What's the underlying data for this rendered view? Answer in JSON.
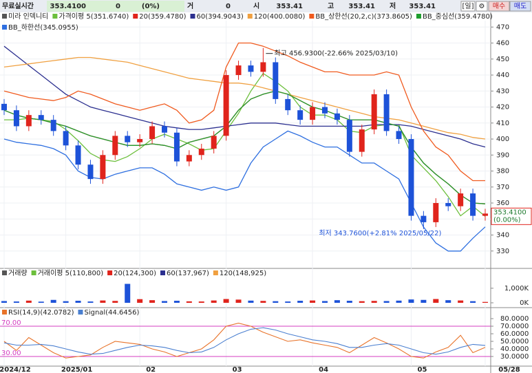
{
  "header": {
    "label": "무료실시간",
    "price": "353.4100",
    "change": "0",
    "change_pct": "(0%)",
    "vol_label": "거",
    "vol": "0",
    "open_label": "시",
    "open": "353.41",
    "high_label": "고",
    "high": "353.41",
    "low_label": "저",
    "low": "353.41",
    "period": "[일]",
    "settings": "⚙",
    "buy": "매수",
    "sell": "매도"
  },
  "chart_data": [
    {
      "type": "candlestick",
      "title": "미라 인덱니티",
      "categories": [
        "2024/12",
        null,
        null,
        null,
        null,
        "2025/01",
        null,
        null,
        null,
        null,
        null,
        "02",
        null,
        null,
        null,
        null,
        null,
        null,
        "03",
        null,
        null,
        null,
        null,
        null,
        null,
        "04",
        null,
        null,
        null,
        null,
        null,
        null,
        null,
        "05",
        null,
        null,
        null,
        null,
        null,
        "05/28"
      ],
      "open": [
        422,
        418,
        408,
        415,
        412,
        405,
        396,
        384,
        375,
        390,
        402,
        398,
        400,
        408,
        404,
        386,
        390,
        394,
        402,
        440,
        446,
        442,
        448,
        425,
        418,
        412,
        420,
        416,
        412,
        392,
        406,
        428,
        405,
        400,
        352,
        348,
        360,
        358,
        366,
        352
      ],
      "high": [
        425,
        421,
        418,
        418,
        415,
        408,
        399,
        387,
        393,
        405,
        405,
        403,
        411,
        411,
        407,
        393,
        397,
        405,
        443,
        449,
        449,
        456.93,
        451,
        428,
        421,
        423,
        423,
        419,
        415,
        409,
        431,
        431,
        408,
        403,
        355,
        363,
        363,
        369,
        369,
        356.41
      ],
      "low": [
        415,
        405,
        405,
        409,
        402,
        393,
        381,
        372,
        372,
        387,
        395,
        395,
        397,
        401,
        383,
        383,
        387,
        391,
        399,
        437,
        439,
        439,
        422,
        415,
        409,
        409,
        413,
        409,
        389,
        389,
        403,
        402,
        397,
        349,
        343.76,
        345,
        355,
        355,
        349,
        349
      ],
      "close": [
        418,
        408,
        415,
        412,
        405,
        396,
        384,
        375,
        390,
        402,
        398,
        400,
        408,
        404,
        386,
        390,
        394,
        402,
        440,
        446,
        442,
        448,
        425,
        418,
        412,
        420,
        416,
        412,
        392,
        406,
        428,
        405,
        400,
        352,
        348,
        360,
        358,
        366,
        352,
        353.41
      ],
      "up_color": "#e0241c",
      "down_color": "#1d52d8",
      "series": [
        {
          "name": "가격이평 5(351.6740)",
          "color": "#6cbf3c",
          "values": [
            412,
            412,
            413,
            412,
            411,
            406,
            399,
            391,
            387,
            386,
            389,
            394,
            400,
            403,
            400,
            397,
            393,
            394,
            405,
            416,
            430,
            441,
            436,
            430,
            420,
            415,
            415,
            412,
            405,
            404,
            408,
            409,
            409,
            390,
            382,
            374,
            364,
            352,
            358,
            351.67
          ]
        },
        {
          "name": "20(359.4780)",
          "color": "#e0241c",
          "values": [
            418,
            415,
            413,
            412,
            410,
            408,
            405,
            402,
            400,
            398,
            396,
            396,
            397,
            396,
            394,
            398,
            400,
            402,
            408,
            418,
            425,
            428,
            430,
            428,
            424,
            420,
            418,
            415,
            412,
            412,
            412,
            410,
            408,
            395,
            385,
            378,
            372,
            365,
            360,
            359.48
          ]
        },
        {
          "name": "60(394.9043)",
          "color": "#2b2f8f",
          "values": [
            458,
            452,
            446,
            440,
            434,
            428,
            424,
            420,
            418,
            416,
            414,
            412,
            410,
            408,
            407,
            406,
            406,
            407,
            408,
            409,
            410,
            410,
            410,
            409,
            408,
            408,
            408,
            408,
            408,
            408,
            409,
            409,
            409,
            408,
            406,
            404,
            402,
            400,
            397,
            395
          ]
        },
        {
          "name": "120(400.0080)",
          "color": "#f0a040",
          "values": [
            445,
            446,
            447,
            448,
            449,
            450,
            451,
            451,
            450,
            449,
            448,
            446,
            444,
            442,
            440,
            438,
            437,
            436,
            435,
            435,
            434,
            432,
            430,
            428,
            426,
            424,
            422,
            420,
            418,
            416,
            414,
            413,
            412,
            410,
            408,
            406,
            404,
            403,
            401,
            400
          ]
        },
        {
          "name": "BB_상한선(20,2,c)(373.8605)",
          "color": "#f05a1e",
          "values": [
            430,
            428,
            426,
            425,
            424,
            426,
            430,
            428,
            425,
            422,
            420,
            418,
            420,
            422,
            418,
            410,
            412,
            418,
            445,
            460,
            460,
            458,
            455,
            452,
            448,
            445,
            442,
            442,
            440,
            440,
            440,
            442,
            440,
            420,
            405,
            395,
            390,
            380,
            374,
            374
          ]
        },
        {
          "name": "BB_중심선(359.4780)",
          "color": "#1e9e2e",
          "values": [
            418,
            415,
            413,
            412,
            410,
            408,
            405,
            402,
            400,
            398,
            396,
            396,
            397,
            396,
            394,
            398,
            400,
            402,
            408,
            418,
            425,
            428,
            430,
            428,
            424,
            420,
            418,
            415,
            412,
            412,
            412,
            410,
            408,
            395,
            385,
            378,
            372,
            365,
            360,
            359.48
          ]
        },
        {
          "name": "BB_하한선(345.0955)",
          "color": "#2e6fe0",
          "values": [
            400,
            398,
            397,
            396,
            394,
            390,
            380,
            376,
            375,
            378,
            380,
            382,
            382,
            378,
            372,
            370,
            368,
            370,
            368,
            370,
            385,
            395,
            400,
            405,
            402,
            398,
            395,
            395,
            390,
            385,
            385,
            380,
            375,
            360,
            345,
            335,
            330,
            330,
            338,
            345.1
          ]
        }
      ],
      "annotations": [
        "최고 456.9300(-22.66% 2025/03/10)",
        "최저 343.7600(+2.81% 2025/05/22)"
      ],
      "last_label": "353.4100",
      "last_change": "(0.00%)",
      "ylim": [
        320,
        474
      ],
      "yticks": [
        330,
        340,
        350,
        360,
        370,
        380,
        390,
        400,
        410,
        420,
        430,
        440,
        450,
        460,
        470
      ],
      "grid": true
    },
    {
      "type": "bar",
      "title": "거래량",
      "legend": [
        {
          "name": "거래이평 5(110,800)",
          "color": "#6cbf3c"
        },
        {
          "name": "20(124,300)",
          "color": "#e0241c"
        },
        {
          "name": "60(137,967)",
          "color": "#2b2f8f"
        },
        {
          "name": "120(148,925)",
          "color": "#f0a040"
        }
      ],
      "values": [
        120,
        90,
        150,
        80,
        200,
        110,
        140,
        90,
        160,
        130,
        1300,
        250,
        180,
        120,
        140,
        100,
        90,
        160,
        260,
        220,
        150,
        130,
        110,
        90,
        140,
        160,
        120,
        180,
        140,
        110,
        130,
        120,
        150,
        230,
        200,
        260,
        180,
        160,
        110,
        60
      ],
      "ylim": [
        0,
        1700
      ],
      "yticks": [
        {
          "value": 0,
          "label": "0K"
        },
        {
          "value": 1000,
          "label": "1,000K"
        }
      ]
    },
    {
      "type": "line",
      "series": [
        {
          "name": "RSI(14,9)(42.0782)",
          "color": "#e8732a",
          "values": [
            50,
            38,
            55,
            45,
            35,
            28,
            30,
            32,
            42,
            50,
            48,
            46,
            40,
            36,
            30,
            35,
            40,
            52,
            70,
            74,
            70,
            62,
            56,
            50,
            52,
            48,
            45,
            42,
            35,
            45,
            55,
            48,
            40,
            30,
            28,
            36,
            42,
            58,
            35,
            42.08
          ]
        },
        {
          "name": "Signal(44.6456)",
          "color": "#4a7fd0",
          "values": [
            48,
            45,
            45,
            46,
            44,
            40,
            36,
            33,
            34,
            38,
            42,
            45,
            44,
            42,
            38,
            35,
            36,
            42,
            52,
            60,
            66,
            68,
            65,
            60,
            56,
            52,
            50,
            47,
            42,
            42,
            45,
            47,
            45,
            40,
            35,
            33,
            36,
            42,
            46,
            44.65
          ]
        }
      ],
      "levels": [
        {
          "value": 70,
          "label": "70.00"
        },
        {
          "value": 30,
          "label": "30.00"
        }
      ],
      "level_color": "#d43cc0",
      "ylim": [
        19,
        87
      ],
      "yticks": [
        {
          "value": 30,
          "label": "30.0000"
        },
        {
          "value": 40,
          "label": "40.0000"
        },
        {
          "value": 50,
          "label": "50.0000"
        },
        {
          "value": 60,
          "label": "60.0000"
        },
        {
          "value": 70,
          "label": "70.0000"
        },
        {
          "value": 80,
          "label": "80.0000"
        }
      ]
    }
  ]
}
